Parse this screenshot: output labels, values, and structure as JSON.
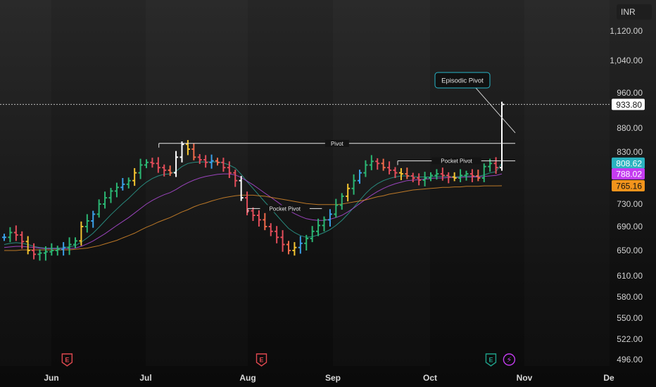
{
  "currency": "INR",
  "chart_data": {
    "type": "candlestick",
    "title": "",
    "ylim": [
      496,
      1160
    ],
    "y_ticks": [
      "1,120.00",
      "1,040.00",
      "960.00",
      "880.00",
      "830.00",
      "730.00",
      "690.00",
      "650.00",
      "610.00",
      "580.00",
      "550.00",
      "522.00",
      "496.00"
    ],
    "x_ticks": [
      "Jun",
      "Jul",
      "Aug",
      "Sep",
      "Oct",
      "Nov",
      "Dec"
    ],
    "x_tick_display": [
      "Jun",
      "Jul",
      "Aug",
      "Sep",
      "Oct",
      "Nov",
      "De"
    ],
    "price_labels": [
      {
        "value": 933.8,
        "text": "933.80",
        "color": "#ffffff",
        "text_color": "#111111"
      },
      {
        "value": 808.62,
        "text": "808.62",
        "color": "#2bb3c0",
        "text_color": "#ffffff"
      },
      {
        "value": 788.02,
        "text": "788.02",
        "color": "#c43cf0",
        "text_color": "#ffffff"
      },
      {
        "value": 765.16,
        "text": "765.16",
        "color": "#f2941c",
        "text_color": "#111111"
      }
    ],
    "annotations": [
      {
        "label": "Episodic Pivot",
        "kind": "callout",
        "anchor_date": "Oct 29",
        "anchor_price": 870
      },
      {
        "label": "Pivot",
        "kind": "level",
        "price": 848,
        "from": "Jul 5",
        "to": "Oct 29"
      },
      {
        "label": "Pocket Pivot",
        "kind": "level",
        "price": 813,
        "from": "Sep 21",
        "to": "Oct 29"
      },
      {
        "label": "Pocket Pivot",
        "kind": "level",
        "price": 722,
        "from": "Aug 1",
        "to": "Aug 28"
      }
    ],
    "events": [
      {
        "type": "earnings",
        "symbol": "E",
        "date": "Jun 6",
        "color": "#e0484f"
      },
      {
        "type": "earnings",
        "symbol": "E",
        "date": "Aug 6",
        "color": "#e0484f"
      },
      {
        "type": "earnings",
        "symbol": "E",
        "date": "Oct 21",
        "color": "#1fa18a"
      },
      {
        "type": "event",
        "symbol": "⚡",
        "date": "Oct 27",
        "color": "#c43cf0"
      }
    ],
    "series": [
      {
        "name": "",
        "values": [
          672,
          680,
          676,
          665,
          650,
          644,
          646,
          648,
          650,
          652,
          655,
          660,
          666,
          690,
          700,
          712,
          730,
          742,
          755,
          762,
          768,
          775,
          790,
          805,
          810,
          808,
          800,
          795,
          790,
          820,
          846,
          836,
          820,
          815,
          810,
          813,
          810,
          800,
          790,
          775,
          742,
          718,
          710,
          702,
          690,
          682,
          672,
          660,
          650,
          655,
          662,
          670,
          682,
          692,
          702,
          712,
          728,
          745,
          760,
          775,
          790,
          805,
          812,
          808,
          800,
          795,
          790,
          788,
          784,
          780,
          776,
          780,
          785,
          788,
          785,
          782,
          780,
          785,
          788,
          784,
          780,
          802,
          808,
          800,
          933.8
        ]
      },
      {
        "name": "",
        "values": [
          660,
          662,
          663,
          662,
          660,
          657,
          655,
          654,
          654,
          654,
          655,
          656,
          658,
          664,
          671,
          679,
          689,
          700,
          711,
          721,
          731,
          741,
          752,
          763,
          772,
          779,
          784,
          787,
          788,
          793,
          802,
          808,
          810,
          811,
          811,
          811,
          811,
          809,
          805,
          799,
          787,
          773,
          760,
          747,
          734,
          722,
          710,
          698,
          687,
          680,
          675,
          672,
          673,
          676,
          680,
          685,
          692,
          701,
          712,
          724,
          737,
          750,
          761,
          769,
          775,
          779,
          782,
          784,
          784,
          783,
          782,
          782,
          782,
          783,
          783,
          783,
          782,
          783,
          784,
          784,
          783,
          786,
          790,
          792,
          808.62
        ]
      },
      {
        "name": "",
        "values": [
          655,
          656,
          657,
          657,
          656,
          655,
          654,
          653,
          653,
          653,
          653,
          653,
          654,
          657,
          661,
          666,
          672,
          678,
          685,
          692,
          699,
          706,
          714,
          722,
          730,
          737,
          743,
          748,
          752,
          758,
          765,
          771,
          776,
          780,
          783,
          785,
          787,
          788,
          788,
          786,
          781,
          774,
          767,
          759,
          751,
          743,
          735,
          727,
          719,
          713,
          708,
          704,
          702,
          701,
          701,
          703,
          706,
          710,
          716,
          723,
          731,
          739,
          747,
          754,
          760,
          765,
          769,
          772,
          775,
          776,
          777,
          778,
          779,
          780,
          780,
          781,
          781,
          781,
          782,
          782,
          782,
          783,
          784,
          785,
          788.02
        ]
      },
      {
        "name": "",
        "values": [
          650,
          650,
          650,
          651,
          651,
          651,
          651,
          651,
          651,
          651,
          651,
          651,
          652,
          653,
          654,
          656,
          658,
          661,
          664,
          667,
          671,
          675,
          679,
          684,
          689,
          693,
          698,
          702,
          706,
          711,
          716,
          720,
          725,
          729,
          732,
          736,
          739,
          742,
          744,
          746,
          747,
          747,
          747,
          746,
          745,
          743,
          741,
          739,
          737,
          735,
          733,
          731,
          730,
          729,
          729,
          729,
          729,
          730,
          732,
          734,
          736,
          738,
          741,
          744,
          746,
          749,
          751,
          753,
          755,
          757,
          758,
          759,
          760,
          761,
          762,
          762,
          763,
          763,
          764,
          764,
          764,
          765,
          765,
          765,
          765.16
        ]
      }
    ]
  }
}
